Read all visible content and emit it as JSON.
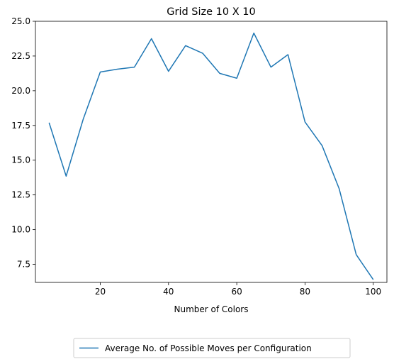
{
  "chart_data": {
    "type": "line",
    "title": "Grid Size 10 X 10",
    "xlabel": "Number of Colors",
    "ylabel": "",
    "xlim": [
      1,
      104
    ],
    "ylim": [
      6.2,
      25.0
    ],
    "xticks": [
      20,
      40,
      60,
      80,
      100
    ],
    "yticks": [
      7.5,
      10.0,
      12.5,
      15.0,
      17.5,
      20.0,
      22.5,
      25.0
    ],
    "ytick_labels": [
      "7.5",
      "10.0",
      "12.5",
      "15.0",
      "17.5",
      "20.0",
      "22.5",
      "25.0"
    ],
    "legend_position": "below",
    "grid": false,
    "series": [
      {
        "name": "Average No. of Possible Moves per Configuration",
        "color": "#1f77b4",
        "x": [
          5,
          10,
          15,
          20,
          25,
          30,
          35,
          40,
          45,
          50,
          55,
          60,
          65,
          70,
          75,
          80,
          85,
          90,
          95,
          100
        ],
        "y": [
          17.7,
          13.85,
          17.95,
          21.35,
          21.55,
          21.7,
          23.75,
          21.4,
          23.25,
          22.7,
          21.25,
          20.9,
          24.15,
          21.7,
          22.6,
          17.75,
          16.05,
          12.95,
          8.2,
          6.4
        ]
      }
    ]
  }
}
